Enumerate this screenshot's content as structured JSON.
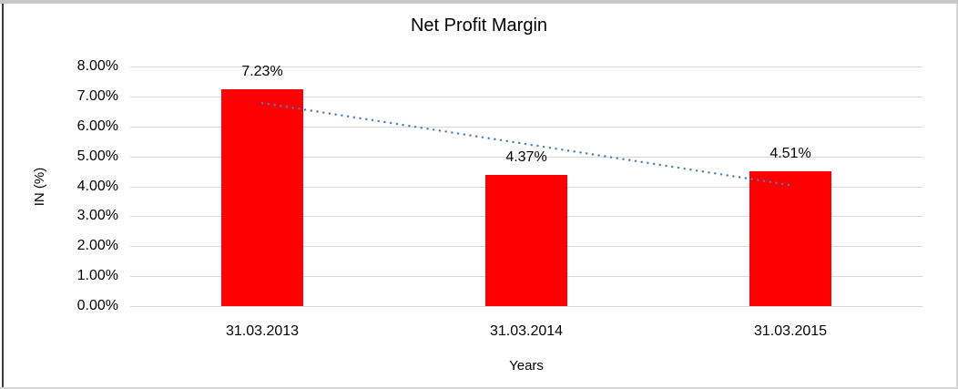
{
  "chart_data": {
    "type": "bar",
    "title": "Net Profit Margin",
    "categories": [
      "31.03.2013",
      "31.03.2014",
      "31.03.2015"
    ],
    "series": [
      {
        "name": "Net Profit Margin",
        "values": [
          7.23,
          4.37,
          4.51
        ]
      }
    ],
    "data_labels": [
      "7.23%",
      "4.37%",
      "4.51%"
    ],
    "xlabel": "Years",
    "ylabel": "IN (%)",
    "ylim": [
      0,
      8
    ],
    "y_tick_step": 1,
    "y_ticks_top_to_bottom": [
      "8.00%",
      "7.00%",
      "6.00%",
      "5.00%",
      "4.00%",
      "3.00%",
      "2.00%",
      "1.00%",
      "0.00%"
    ],
    "grid": "horizontal",
    "legend": "none",
    "bar_color": "#ff0000",
    "gridline_color": "#d9d9d9",
    "text_color": "#000000",
    "trendline": {
      "type": "linear",
      "style": "dotted",
      "color": "#4a7ebb",
      "start_value_pct": 6.78,
      "end_value_pct": 4.04
    }
  }
}
